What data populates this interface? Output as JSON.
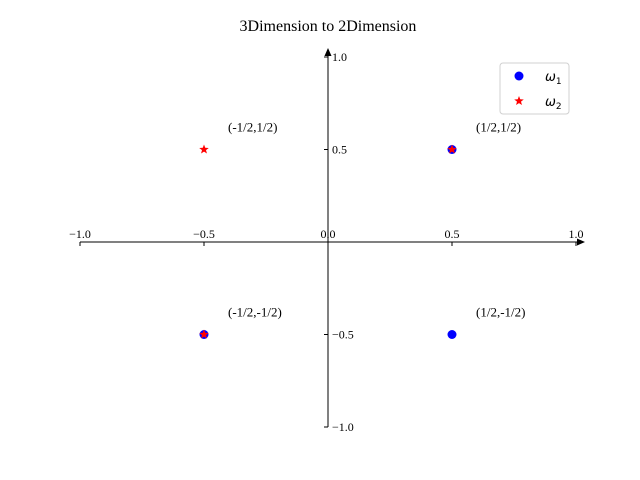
{
  "chart_data": {
    "type": "scatter",
    "title": "3Dimension to 2Dimension",
    "xlim": [
      -1.0,
      1.0
    ],
    "ylim": [
      -1.0,
      1.0
    ],
    "grid": false,
    "legend_position": "top-right",
    "x_ticks": [
      {
        "value": -1.0,
        "label": "−1.0"
      },
      {
        "value": -0.5,
        "label": "−0.5"
      },
      {
        "value": 0.0,
        "label": "0.0"
      },
      {
        "value": 0.5,
        "label": "0.5"
      },
      {
        "value": 1.0,
        "label": "1.0"
      }
    ],
    "y_ticks": [
      {
        "value": -1.0,
        "label": "−1.0"
      },
      {
        "value": -0.5,
        "label": "−0.5"
      },
      {
        "value": 0.5,
        "label": "0.5"
      },
      {
        "value": 1.0,
        "label": "1.0"
      }
    ],
    "series": [
      {
        "name": "ω",
        "subscript": "1",
        "marker": "circle",
        "color": "#0000ff",
        "points": [
          {
            "x": 0.5,
            "y": 0.5
          },
          {
            "x": -0.5,
            "y": -0.5
          },
          {
            "x": 0.5,
            "y": -0.5
          }
        ]
      },
      {
        "name": "ω",
        "subscript": "2",
        "marker": "star",
        "color": "#ff0000",
        "points": [
          {
            "x": -0.5,
            "y": 0.5
          },
          {
            "x": 0.5,
            "y": 0.5
          },
          {
            "x": -0.5,
            "y": -0.5
          }
        ]
      }
    ],
    "annotations": [
      {
        "x": 0.5,
        "y": 0.5,
        "text": "(1/2,1/2)"
      },
      {
        "x": -0.5,
        "y": 0.5,
        "text": "(-1/2,1/2)"
      },
      {
        "x": -0.5,
        "y": -0.5,
        "text": "(-1/2,-1/2)"
      },
      {
        "x": 0.5,
        "y": -0.5,
        "text": "(1/2,-1/2)"
      }
    ]
  }
}
